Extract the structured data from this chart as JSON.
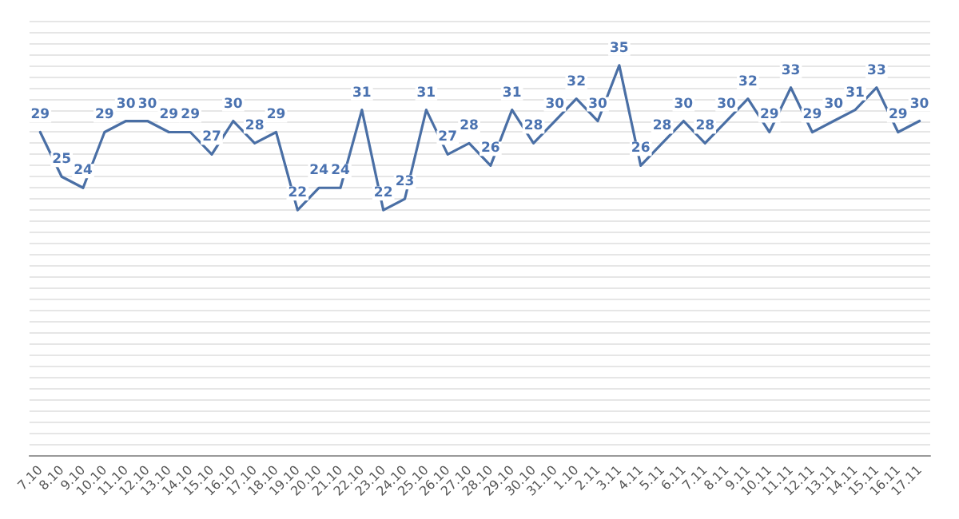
{
  "chart_data": {
    "type": "line",
    "categories": [
      "7.10",
      "8.10",
      "9.10",
      "10.10",
      "11.10",
      "12.10",
      "13.10",
      "14.10",
      "15.10",
      "16.10",
      "17.10",
      "18.10",
      "19.10",
      "20.10",
      "21.10",
      "22.10",
      "23.10",
      "24.10",
      "25.10",
      "26.10",
      "27.10",
      "28.10",
      "29.10",
      "30.10",
      "31.10",
      "1.10",
      "2.11",
      "3.11",
      "4.11",
      "5.11",
      "6.11",
      "7.11",
      "8.11",
      "9.11",
      "10.11",
      "11.11",
      "12.11",
      "13.11",
      "14.11",
      "15.11",
      "16.11",
      "17.11"
    ],
    "series": [
      {
        "color": "#4a6fa5",
        "values": [
          29,
          25,
          24,
          29,
          30,
          30,
          29,
          29,
          27,
          30,
          28,
          29,
          22,
          24,
          24,
          31,
          22,
          23,
          31,
          27,
          28,
          26,
          31,
          28,
          30,
          32,
          30,
          35,
          26,
          28,
          30,
          28,
          30,
          32,
          29,
          33,
          29,
          30,
          31,
          33,
          29,
          30
        ]
      }
    ],
    "ylim": [
      0,
      39
    ],
    "yticks": [
      {
        "value": 0,
        "label": null
      },
      {
        "value": 1,
        "label": null
      },
      {
        "value": 2,
        "label": null
      },
      {
        "value": 3,
        "label": null
      },
      {
        "value": 4,
        "label": null
      },
      {
        "value": 5,
        "label": null
      },
      {
        "value": 6,
        "label": null
      },
      {
        "value": 7,
        "label": null
      },
      {
        "value": 8,
        "label": null
      },
      {
        "value": 9,
        "label": null
      },
      {
        "value": 10,
        "label": null
      },
      {
        "value": 11,
        "label": null
      },
      {
        "value": 12,
        "label": null
      },
      {
        "value": 13,
        "label": null
      },
      {
        "value": 14,
        "label": null
      },
      {
        "value": 15,
        "label": null
      },
      {
        "value": 16,
        "label": null
      },
      {
        "value": 17,
        "label": null
      },
      {
        "value": 18,
        "label": null
      },
      {
        "value": 19,
        "label": null
      },
      {
        "value": 20,
        "label": null
      },
      {
        "value": 21,
        "label": null
      },
      {
        "value": 22,
        "label": null
      },
      {
        "value": 23,
        "label": null
      },
      {
        "value": 24,
        "label": null
      },
      {
        "value": 25,
        "label": null
      },
      {
        "value": 26,
        "label": null
      },
      {
        "value": 27,
        "label": null
      },
      {
        "value": 28,
        "label": null
      },
      {
        "value": 29,
        "label": null
      },
      {
        "value": 30,
        "label": null
      },
      {
        "value": 31,
        "label": null
      },
      {
        "value": 32,
        "label": null
      },
      {
        "value": 33,
        "label": null
      },
      {
        "value": 34,
        "label": null
      },
      {
        "value": 35,
        "label": null
      },
      {
        "value": 36,
        "label": null
      },
      {
        "value": 37,
        "label": null
      },
      {
        "value": 38,
        "label": null
      },
      {
        "value": 39,
        "label": null
      }
    ],
    "grid": "y",
    "tick_labels": "x",
    "data_labels": true,
    "marker": "none",
    "line_style": "solid"
  }
}
